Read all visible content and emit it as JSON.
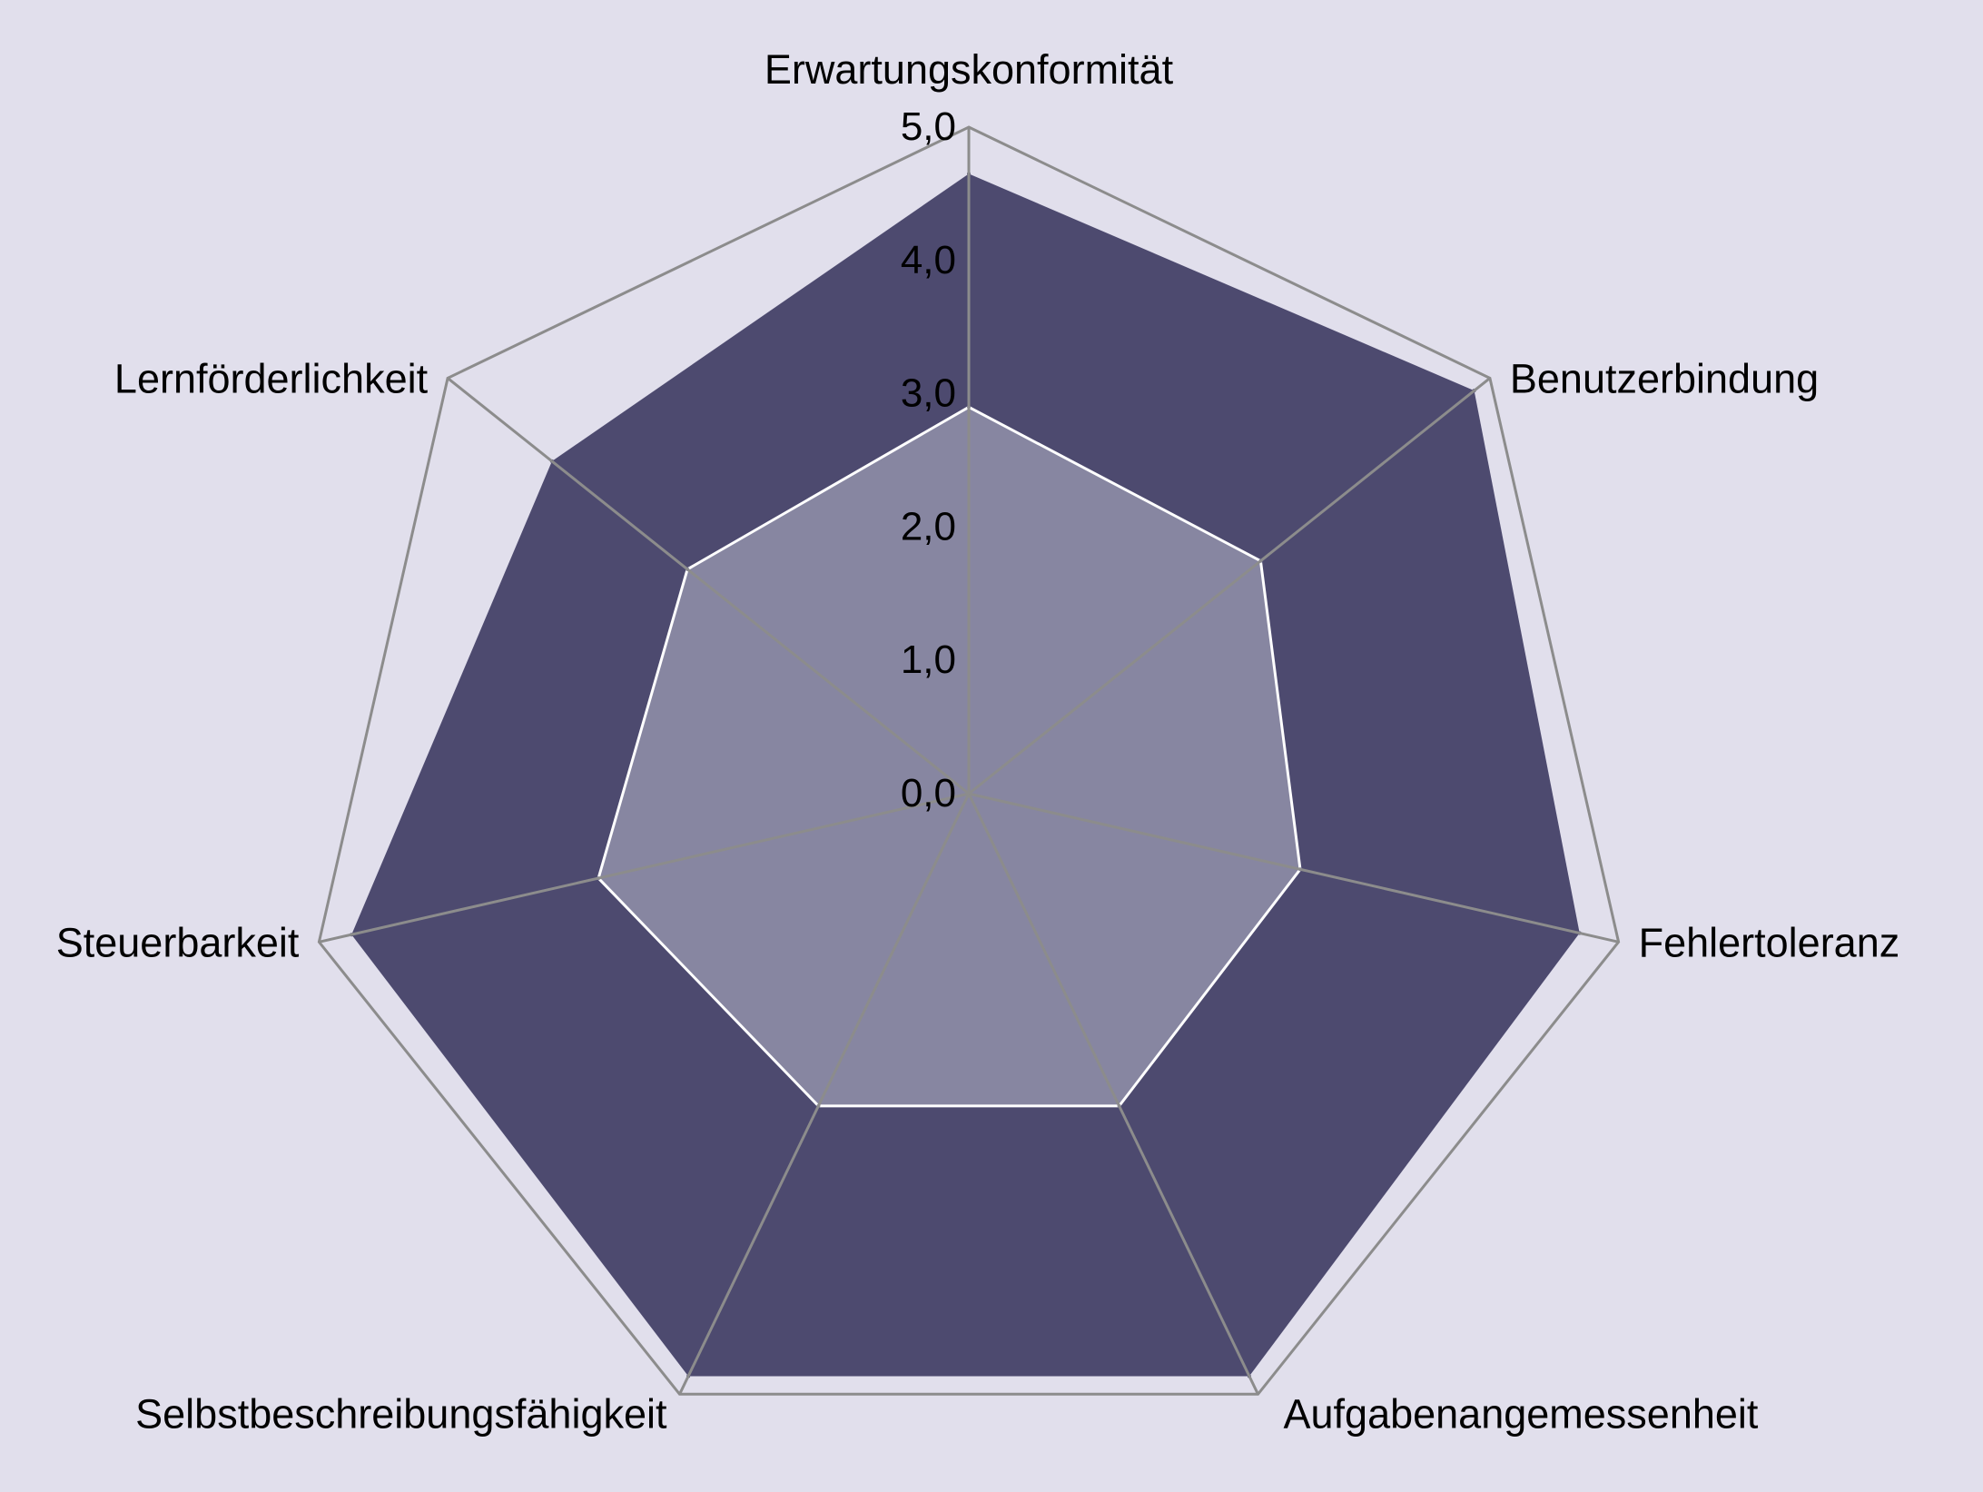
{
  "chart_data": {
    "type": "radar",
    "categories": [
      "Erwartungskonformität",
      "Benutzerbindung",
      "Fehlertoleranz",
      "Aufgabenangemessenheit",
      "Selbstbeschreibungsfähigkeit",
      "Steuerbarkeit",
      "Lernförderlichkeit"
    ],
    "series": [
      {
        "values": [
          4.65,
          4.85,
          4.7,
          4.85,
          4.85,
          4.75,
          4.0
        ],
        "color": "#4d4a6f"
      },
      {
        "values": [
          2.9,
          2.8,
          2.55,
          2.6,
          2.6,
          2.85,
          2.7
        ],
        "color": "#8786a1"
      }
    ],
    "r_ticks": [
      "0,0",
      "1,0",
      "2,0",
      "3,0",
      "4,0",
      "5,0"
    ],
    "r_min": 0,
    "r_max": 5,
    "grid_levels": [
      0,
      5
    ],
    "grid_color": "#8c8c8c",
    "inner_edge_color": "#ffffff",
    "background": "#e1dfec",
    "legend": "none"
  }
}
